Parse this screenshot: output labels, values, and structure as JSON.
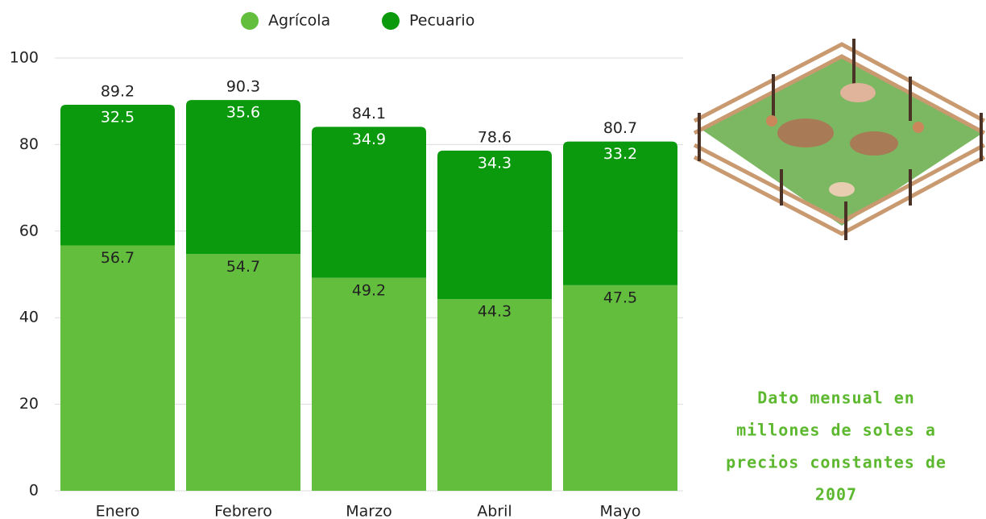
{
  "chart_data": {
    "type": "stacked_bar",
    "categories": [
      "Enero",
      "Febrero",
      "Marzo",
      "Abril",
      "Mayo"
    ],
    "series": [
      {
        "name": "Agrícola",
        "color": "#62be3c",
        "values": [
          56.7,
          54.7,
          49.2,
          44.3,
          47.5
        ]
      },
      {
        "name": "Pecuario",
        "color": "#0b9a0d",
        "values": [
          32.5,
          35.6,
          34.9,
          34.3,
          33.2
        ]
      }
    ],
    "totals": [
      89.2,
      90.3,
      84.1,
      78.6,
      80.7
    ],
    "ylim": [
      0,
      100
    ],
    "yticks": [
      0,
      20,
      40,
      60,
      80,
      100
    ],
    "grid": true,
    "legend": "top",
    "note": [
      "Dato mensual en",
      "millones de soles a",
      "precios constantes de",
      "2007"
    ]
  }
}
